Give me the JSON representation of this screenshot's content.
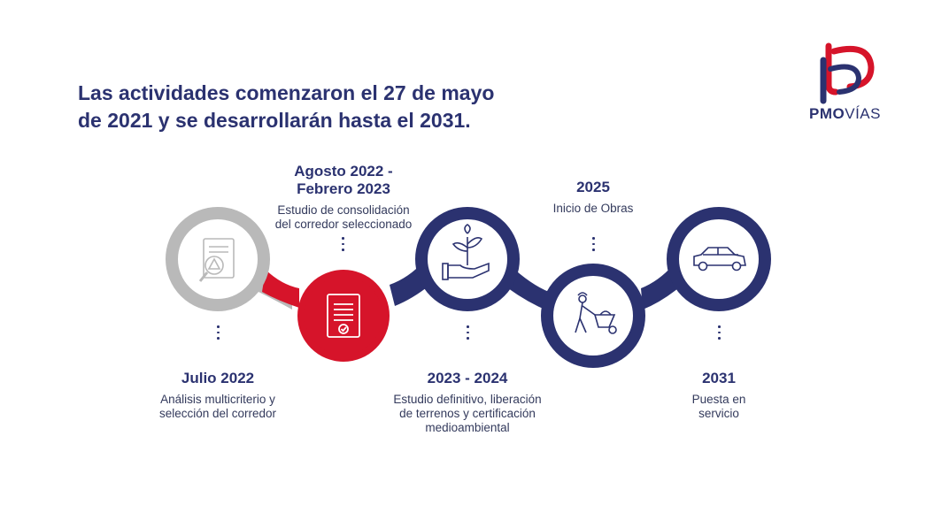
{
  "header": {
    "title_line1": "Las actividades comenzaron el 27 de mayo",
    "title_line2": "de 2021 y se desarrollarán hasta el 2031."
  },
  "logo": {
    "text_bold": "PMO",
    "text_light": "VÍAS",
    "colors": {
      "red": "#d6142a",
      "navy": "#2b3270"
    }
  },
  "colors": {
    "gray": "#b9b9b9",
    "red": "#d6142a",
    "navy": "#2b3270"
  },
  "milestones": [
    {
      "date": "Julio 2022",
      "desc_lines": [
        "Análisis multicriterio y",
        "selección del corredor"
      ],
      "icon": "document-warning-icon",
      "color": "gray"
    },
    {
      "date_lines": [
        "Agosto 2022 -",
        "Febrero 2023"
      ],
      "desc_lines": [
        "Estudio de consolidación",
        "del corredor seleccionado"
      ],
      "icon": "certificate-document-icon",
      "color": "red"
    },
    {
      "date": "2023 - 2024",
      "desc_lines": [
        "Estudio definitivo, liberación",
        "de terrenos y certificación",
        "medioambiental"
      ],
      "icon": "hand-plant-icon",
      "color": "navy"
    },
    {
      "date": "2025",
      "desc_lines": [
        "Inicio de Obras"
      ],
      "icon": "worker-wheelbarrow-icon",
      "color": "navy"
    },
    {
      "date": "2031",
      "desc_lines": [
        "Puesta en",
        "servicio"
      ],
      "icon": "car-icon",
      "color": "navy"
    }
  ]
}
